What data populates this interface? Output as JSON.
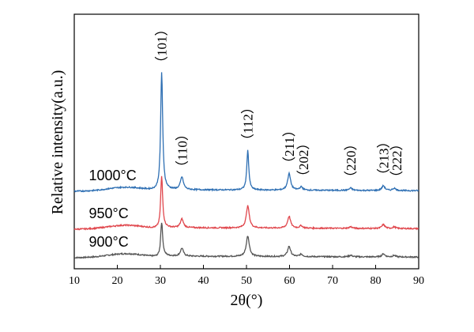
{
  "chart_data": {
    "type": "line",
    "xlabel": "2θ(°)",
    "ylabel": "Relative intensity(a.u.)",
    "xlim": [
      10,
      90
    ],
    "xticks": [
      10,
      20,
      30,
      40,
      50,
      60,
      70,
      80,
      90
    ],
    "y_ticks_shown": false,
    "grid": false,
    "legend": "none",
    "series": [
      {
        "name": "900°C",
        "color": "#555555",
        "baseline_offset": 0,
        "peaks": [
          {
            "x": 30.3,
            "height": 42
          },
          {
            "x": 35.0,
            "height": 10
          },
          {
            "x": 50.3,
            "height": 26
          },
          {
            "x": 59.9,
            "height": 13
          },
          {
            "x": 62.7,
            "height": 3
          },
          {
            "x": 74.2,
            "height": 2
          },
          {
            "x": 81.8,
            "height": 4
          },
          {
            "x": 84.3,
            "height": 2
          }
        ]
      },
      {
        "name": "950°C",
        "color": "#e0464c",
        "baseline_offset": 36,
        "peaks": [
          {
            "x": 30.3,
            "height": 64
          },
          {
            "x": 35.0,
            "height": 11
          },
          {
            "x": 50.3,
            "height": 28
          },
          {
            "x": 59.9,
            "height": 15
          },
          {
            "x": 62.7,
            "height": 3
          },
          {
            "x": 74.2,
            "height": 2
          },
          {
            "x": 81.8,
            "height": 5
          },
          {
            "x": 84.3,
            "height": 2
          }
        ]
      },
      {
        "name": "1000°C",
        "color": "#2e6fb3",
        "baseline_offset": 84,
        "peaks": [
          {
            "x": 30.3,
            "height": 148
          },
          {
            "x": 35.0,
            "height": 16
          },
          {
            "x": 50.3,
            "height": 50
          },
          {
            "x": 59.9,
            "height": 21
          },
          {
            "x": 62.7,
            "height": 4
          },
          {
            "x": 74.2,
            "height": 3
          },
          {
            "x": 81.8,
            "height": 6
          },
          {
            "x": 84.3,
            "height": 3
          }
        ]
      }
    ],
    "peak_annotations": [
      {
        "label": "（101）",
        "x": 30.3,
        "orientation": "vertical"
      },
      {
        "label": "（110）",
        "x": 35.0,
        "orientation": "vertical"
      },
      {
        "label": "（112）",
        "x": 50.3,
        "orientation": "vertical"
      },
      {
        "label": "（211）",
        "x": 59.9,
        "orientation": "vertical"
      },
      {
        "label": "（202）",
        "x": 62.7,
        "orientation": "vertical"
      },
      {
        "label": "（220）",
        "x": 74.2,
        "orientation": "vertical"
      },
      {
        "label": "（213）",
        "x": 81.8,
        "orientation": "vertical"
      },
      {
        "label": "（222）",
        "x": 84.3,
        "orientation": "vertical"
      }
    ]
  }
}
